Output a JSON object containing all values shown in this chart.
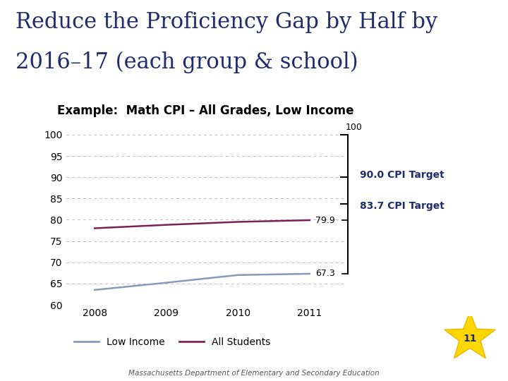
{
  "title_line1": "Reduce the Proficiency Gap by Half by",
  "title_line2": "2016–17 (each group & school)",
  "title_color": "#1f2d6e",
  "title_fontsize": 22,
  "chart_title": "Example:  Math CPI – All Grades, Low Income",
  "chart_title_fontsize": 12,
  "years": [
    2008,
    2009,
    2010,
    2011
  ],
  "low_income": [
    63.5,
    65.2,
    67.0,
    67.3
  ],
  "all_students": [
    78.0,
    78.8,
    79.5,
    79.9
  ],
  "low_income_color": "#8899bb",
  "all_students_color": "#7b2150",
  "ylim": [
    60,
    103
  ],
  "yticks": [
    60,
    65,
    70,
    75,
    80,
    85,
    90,
    95,
    100
  ],
  "target_100": 100,
  "target_90": 90.0,
  "target_837": 83.7,
  "val_799": 79.9,
  "val_673": 67.3,
  "annotation_90": "90.0 CPI Target",
  "annotation_837": "83.7 CPI Target",
  "legend_low": "Low Income",
  "legend_all": "All Students",
  "footer": "Massachusetts Department of Elementary and Secondary Education",
  "background_color": "#ffffff",
  "grid_color": "#aaaaaa",
  "slide_number": "11",
  "annotation_color": "#1f2d6e"
}
